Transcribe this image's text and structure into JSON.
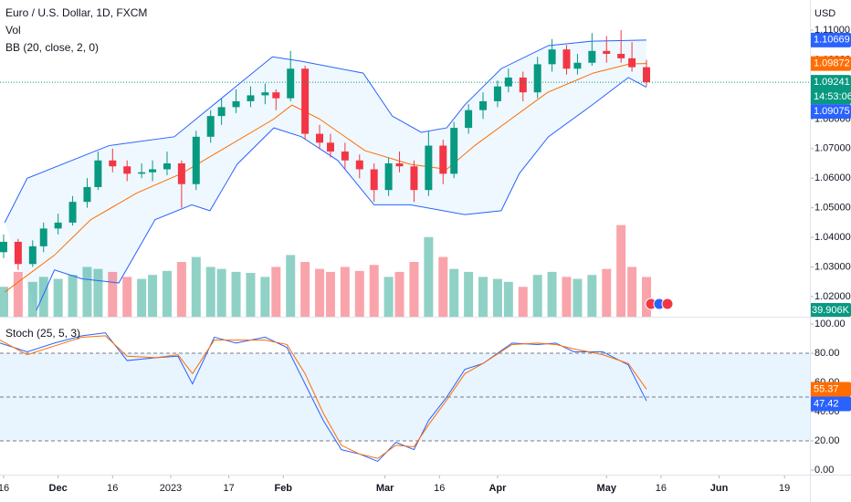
{
  "header": {
    "title": "Euro / U.S. Dollar, 1D, FXCM",
    "indicators": [
      "Vol",
      "BB (20, close, 2, 0)"
    ],
    "currency": "USD"
  },
  "chart_data": [
    {
      "type": "candlestick",
      "xlim": [
        0,
        223
      ],
      "ylim": [
        1.0132,
        1.1202
      ],
      "yticks": [
        {
          "value": 1.02,
          "label": "1.02000"
        },
        {
          "value": 1.03,
          "label": "1.03000"
        },
        {
          "value": 1.04,
          "label": "1.04000"
        },
        {
          "value": 1.05,
          "label": "1.05000"
        },
        {
          "value": 1.06,
          "label": "1.06000"
        },
        {
          "value": 1.07,
          "label": "1.07000"
        },
        {
          "value": 1.08,
          "label": "1.08000"
        },
        {
          "value": 1.09,
          "label": "1.09000"
        },
        {
          "value": 1.1,
          "label": "1.10000"
        },
        {
          "value": 1.11,
          "label": "1.11000"
        }
      ],
      "xticks": [
        {
          "value": 1,
          "label": "16"
        },
        {
          "value": 16,
          "label": "Dec"
        },
        {
          "value": 31,
          "label": "16"
        },
        {
          "value": 47,
          "label": "2023"
        },
        {
          "value": 63,
          "label": "17"
        },
        {
          "value": 78,
          "label": "Feb"
        },
        {
          "value": 106,
          "label": "Mar"
        },
        {
          "value": 121,
          "label": "16"
        },
        {
          "value": 137,
          "label": "Apr"
        },
        {
          "value": 167,
          "label": "May"
        },
        {
          "value": 182,
          "label": "16"
        },
        {
          "value": 198,
          "label": "Jun"
        },
        {
          "value": 216,
          "label": "19"
        }
      ],
      "up_color": "#089981",
      "down_color": "#f23645",
      "x": [
        1,
        5,
        9,
        12,
        16,
        20,
        24,
        27,
        31,
        35,
        39,
        42,
        46,
        50,
        54,
        58,
        61,
        65,
        69,
        73,
        76,
        80,
        84,
        88,
        91,
        95,
        99,
        103,
        107,
        110,
        114,
        118,
        122,
        125,
        129,
        133,
        137,
        140,
        144,
        148,
        152,
        156,
        159,
        163,
        167,
        171,
        174,
        178
      ],
      "ohlc": [
        [
          1.035,
          1.041,
          1.033,
          1.0385
        ],
        [
          1.0385,
          1.0395,
          1.029,
          1.031
        ],
        [
          1.031,
          1.039,
          1.03,
          1.037
        ],
        [
          1.037,
          1.045,
          1.035,
          1.043
        ],
        [
          1.043,
          1.048,
          1.041,
          1.045
        ],
        [
          1.045,
          1.054,
          1.044,
          1.052
        ],
        [
          1.052,
          1.06,
          1.05,
          1.057
        ],
        [
          1.057,
          1.069,
          1.056,
          1.066
        ],
        [
          1.066,
          1.07,
          1.062,
          1.064
        ],
        [
          1.064,
          1.066,
          1.059,
          1.0615
        ],
        [
          1.0615,
          1.065,
          1.06,
          1.062
        ],
        [
          1.062,
          1.066,
          1.059,
          1.063
        ],
        [
          1.063,
          1.069,
          1.061,
          1.065
        ],
        [
          1.065,
          1.066,
          1.05,
          1.058
        ],
        [
          1.058,
          1.076,
          1.056,
          1.074
        ],
        [
          1.074,
          1.083,
          1.072,
          1.081
        ],
        [
          1.081,
          1.087,
          1.078,
          1.084
        ],
        [
          1.084,
          1.09,
          1.082,
          1.086
        ],
        [
          1.086,
          1.091,
          1.084,
          1.088
        ],
        [
          1.088,
          1.092,
          1.085,
          1.089
        ],
        [
          1.089,
          1.09,
          1.083,
          1.087
        ],
        [
          1.087,
          1.103,
          1.086,
          1.097
        ],
        [
          1.097,
          1.098,
          1.073,
          1.075
        ],
        [
          1.075,
          1.078,
          1.07,
          1.072
        ],
        [
          1.072,
          1.075,
          1.067,
          1.069
        ],
        [
          1.069,
          1.072,
          1.063,
          1.066
        ],
        [
          1.066,
          1.068,
          1.06,
          1.063
        ],
        [
          1.063,
          1.065,
          1.052,
          1.056
        ],
        [
          1.056,
          1.067,
          1.054,
          1.065
        ],
        [
          1.065,
          1.069,
          1.062,
          1.064
        ],
        [
          1.064,
          1.066,
          1.052,
          1.056
        ],
        [
          1.056,
          1.076,
          1.054,
          1.071
        ],
        [
          1.071,
          1.073,
          1.058,
          1.0615
        ],
        [
          1.0615,
          1.079,
          1.06,
          1.077
        ],
        [
          1.077,
          1.085,
          1.075,
          1.083
        ],
        [
          1.083,
          1.089,
          1.08,
          1.086
        ],
        [
          1.086,
          1.093,
          1.084,
          1.091
        ],
        [
          1.091,
          1.097,
          1.089,
          1.094
        ],
        [
          1.094,
          1.096,
          1.086,
          1.089
        ],
        [
          1.089,
          1.101,
          1.087,
          1.0985
        ],
        [
          1.0985,
          1.107,
          1.096,
          1.1035
        ],
        [
          1.1035,
          1.105,
          1.095,
          1.097
        ],
        [
          1.097,
          1.102,
          1.095,
          1.099
        ],
        [
          1.099,
          1.109,
          1.098,
          1.103
        ],
        [
          1.103,
          1.108,
          1.099,
          1.102
        ],
        [
          1.102,
          1.11,
          1.099,
          1.1005
        ],
        [
          1.1005,
          1.106,
          1.096,
          1.0975
        ],
        [
          1.0975,
          1.1,
          1.091,
          1.09241
        ]
      ],
      "last_label": {
        "value": 1.09241,
        "label": "1.09241",
        "countdown": "14:53:06",
        "color": "#089981"
      },
      "volume": {
        "ylim": [
          0,
          110
        ],
        "values": [
          30,
          45,
          35,
          40,
          38,
          42,
          50,
          48,
          45,
          40,
          38,
          42,
          46,
          55,
          60,
          50,
          48,
          45,
          44,
          40,
          50,
          62,
          55,
          48,
          45,
          50,
          46,
          52,
          40,
          45,
          55,
          80,
          60,
          48,
          45,
          40,
          38,
          35,
          30,
          42,
          45,
          40,
          38,
          42,
          48,
          92,
          50,
          39.906
        ],
        "last_label": {
          "value": 39.906,
          "label": "39.906K"
        }
      },
      "bands": [
        {
          "color": "#2962ff",
          "x": [
            1.3,
            7.5,
            30,
            48,
            63,
            75,
            83,
            100,
            108,
            116,
            123,
            128,
            138,
            151,
            163,
            178
          ],
          "values": [
            1.045,
            1.06,
            1.071,
            1.074,
            1.089,
            1.101,
            1.0995,
            1.0955,
            1.081,
            1.0755,
            1.077,
            1.0848,
            1.097,
            1.1048,
            1.1063,
            1.10669
          ],
          "last_label": {
            "value": 1.10669,
            "label": "1.10669"
          }
        },
        {
          "color": "#ff6d00",
          "x": [
            1.3,
            15,
            25,
            37.7,
            50,
            63,
            75.4,
            80.4,
            88,
            100.5,
            113,
            123,
            130.7,
            140.7,
            150.8,
            163.3,
            173.4,
            178
          ],
          "values": [
            1.0215,
            1.034,
            1.046,
            1.055,
            1.0616,
            1.071,
            1.08,
            1.0847,
            1.08,
            1.0693,
            1.0647,
            1.063,
            1.071,
            1.08,
            1.089,
            1.0955,
            1.0986,
            1.09872
          ],
          "last_label": {
            "value": 1.09872,
            "label": "1.09872"
          }
        },
        {
          "color": "#2962ff",
          "x": [
            10,
            15,
            22.6,
            32.7,
            42.7,
            52.8,
            57.8,
            65.3,
            75.4,
            83,
            93,
            103,
            113,
            128,
            138,
            143,
            151,
            163,
            173,
            178
          ],
          "values": [
            1.0153,
            1.029,
            1.026,
            1.0246,
            1.046,
            1.051,
            1.049,
            1.0647,
            1.077,
            1.074,
            1.066,
            1.051,
            1.051,
            1.0477,
            1.049,
            1.0616,
            1.074,
            1.0847,
            1.094,
            1.09075
          ],
          "last_label": {
            "value": 1.09075,
            "label": "1.09075"
          }
        }
      ]
    },
    {
      "type": "line",
      "title": "Stoch (25, 5, 3)",
      "ylim": [
        -3.1,
        104.4
      ],
      "yticks": [
        {
          "value": 0,
          "label": "0.00"
        },
        {
          "value": 20,
          "label": "20.00"
        },
        {
          "value": 40,
          "label": "40.00"
        },
        {
          "value": 60,
          "label": "60.00"
        },
        {
          "value": 80,
          "label": "80.00"
        },
        {
          "value": 100,
          "label": "100.00"
        }
      ],
      "levels": [
        80,
        50,
        20
      ],
      "x": [
        0,
        7.5,
        15,
        22.6,
        29,
        35,
        43,
        49,
        53,
        59,
        65,
        73,
        79,
        84,
        89,
        94,
        99,
        104,
        109,
        114,
        118,
        123,
        128,
        133,
        141,
        148,
        153,
        158,
        166,
        173,
        178
      ],
      "series": [
        {
          "color": "#2962ff",
          "values": [
            87,
            81,
            87,
            92,
            94,
            75,
            77,
            78,
            59,
            91,
            87,
            91,
            84,
            59,
            34,
            14,
            11,
            6,
            19,
            14,
            34,
            50,
            69,
            73,
            87,
            86,
            87,
            81,
            81,
            72,
            47.42
          ],
          "last_label": {
            "value": 47.42,
            "label": "47.42"
          }
        },
        {
          "color": "#ff6d00",
          "values": [
            89,
            79,
            85,
            91,
            92,
            78,
            77,
            79,
            66,
            89,
            89,
            89,
            86,
            66,
            39,
            17,
            11,
            8,
            17,
            16,
            31,
            48,
            66,
            73,
            86,
            87,
            86,
            83,
            79,
            73,
            55.37
          ],
          "last_label": {
            "value": 55.37,
            "label": "55.37"
          }
        }
      ]
    }
  ]
}
